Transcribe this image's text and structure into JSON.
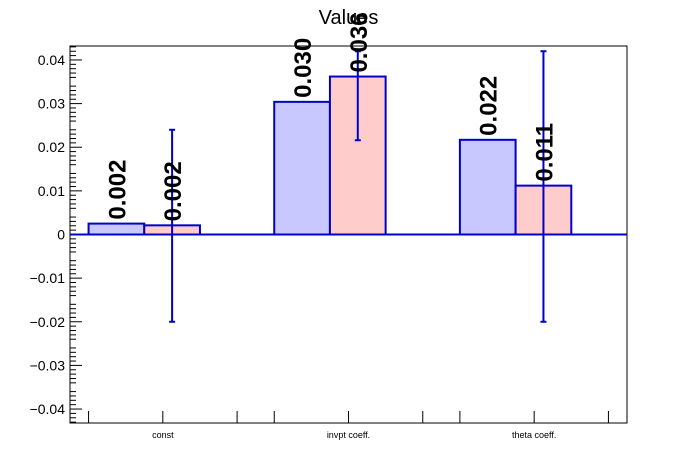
{
  "chart_data": {
    "type": "bar",
    "title": "Values",
    "categories": [
      "const",
      "invpt coeff.",
      "theta coeff."
    ],
    "series": [
      {
        "color": "#c8c8ff",
        "values": [
          0.0025,
          0.0304,
          0.0217
        ],
        "value_labels": [
          "0.002",
          "0.030",
          "0.022"
        ]
      },
      {
        "color": "#ffcccc",
        "values": [
          0.0021,
          0.0362,
          0.0112
        ],
        "value_labels": [
          "0.002",
          "0.036",
          "0.011"
        ],
        "error_low": [
          -0.02,
          0.0216,
          -0.02
        ],
        "error_high": [
          0.024,
          0.042,
          0.042
        ]
      }
    ],
    "ylim": [
      -0.0432,
      0.0432
    ],
    "yticks": [
      -0.04,
      -0.03,
      -0.02,
      -0.01,
      0,
      0.01,
      0.02,
      0.03,
      0.04
    ],
    "ytick_labels": [
      "−0.04",
      "−0.03",
      "−0.02",
      "−0.01",
      "0",
      "0.01",
      "0.02",
      "0.03",
      "0.04"
    ],
    "xlabel": "",
    "ylabel": "",
    "grid": false,
    "outline_color": "#0000cc"
  }
}
